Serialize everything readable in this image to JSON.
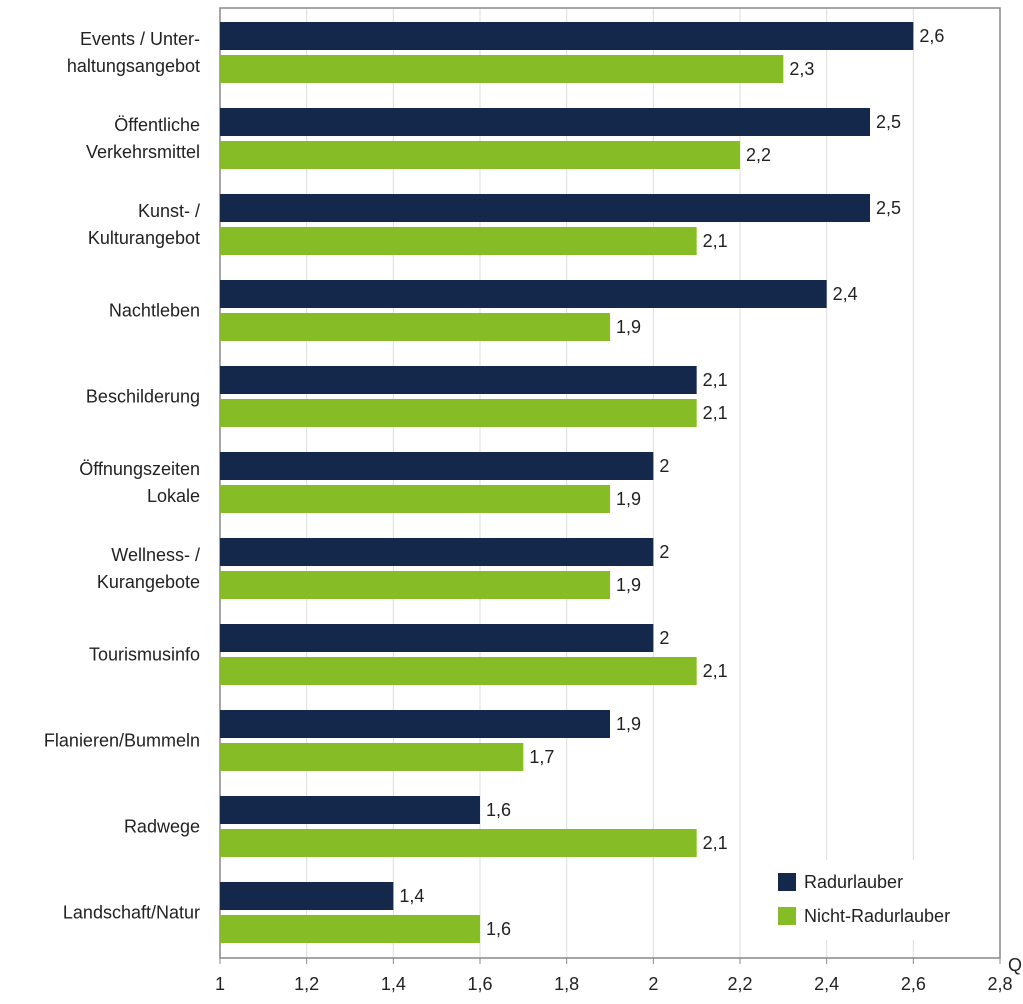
{
  "chart_data": {
    "type": "bar",
    "orientation": "horizontal",
    "categories": [
      "Events / Unter-\nhaltungsangebot",
      "Öffentliche\nVerkehrsmittel",
      "Kunst- /\nKulturangebot",
      "Nachtleben",
      "Beschilderung",
      "Öffnungszeiten\nLokale",
      "Wellness- /\nKurangebote",
      "Tourismusinfo",
      "Flanieren/Bummeln",
      "Radwege",
      "Landschaft/Natur"
    ],
    "series": [
      {
        "name": "Radurlauber",
        "color": "#14284b",
        "values": [
          2.6,
          2.5,
          2.5,
          2.4,
          2.1,
          2,
          2,
          2,
          1.9,
          1.6,
          1.4
        ],
        "value_labels": [
          "2,6",
          "2,5",
          "2,5",
          "2,4",
          "2,1",
          "2",
          "2",
          "2",
          "1,9",
          "1,6",
          "1,4"
        ]
      },
      {
        "name": "Nicht-Radurlauber",
        "color": "#86bc25",
        "values": [
          2.3,
          2.2,
          2.1,
          1.9,
          2.1,
          1.9,
          1.9,
          2.1,
          1.7,
          2.1,
          1.6
        ],
        "value_labels": [
          "2,3",
          "2,2",
          "2,1",
          "1,9",
          "2,1",
          "1,9",
          "1,9",
          "2,1",
          "1,7",
          "2,1",
          "1,6"
        ]
      }
    ],
    "xlim": [
      1,
      2.8
    ],
    "xticks": [
      1,
      {
        "value": 1.2,
        "label": "1,2"
      },
      {
        "value": 1.4,
        "label": "1,4"
      },
      {
        "value": 1.6,
        "label": "1,6"
      },
      {
        "value": 1.8,
        "label": "1,8"
      },
      2,
      {
        "value": 2.2,
        "label": "2,2"
      },
      {
        "value": 2.4,
        "label": "2,4"
      },
      {
        "value": 2.6,
        "label": "2,6"
      },
      {
        "value": 2.8,
        "label": "2,8"
      }
    ],
    "grid": true,
    "legend": "lower right",
    "annotation": "Q"
  }
}
